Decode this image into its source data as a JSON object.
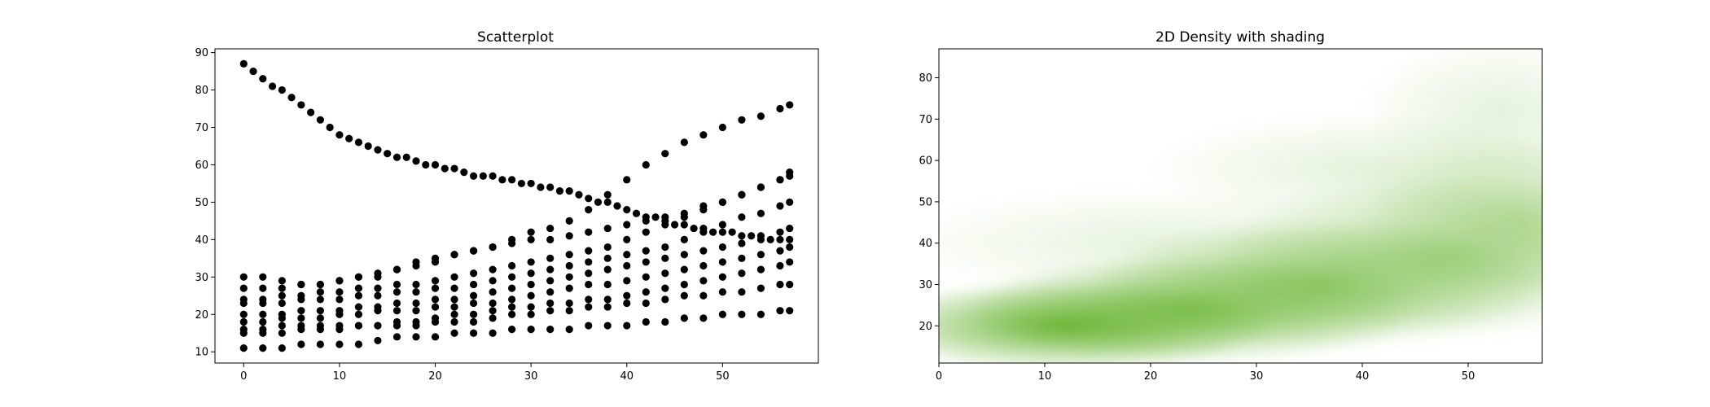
{
  "chart_data": [
    {
      "type": "scatter",
      "title": "Scatterplot",
      "xlim": [
        -3,
        60
      ],
      "ylim": [
        7,
        91
      ],
      "xticks": [
        "0",
        "10",
        "20",
        "30",
        "40",
        "50"
      ],
      "yticks": [
        "10",
        "20",
        "30",
        "40",
        "50",
        "60",
        "70",
        "80",
        "90"
      ],
      "grid": false,
      "marker_color": "#000000",
      "series": [
        {
          "x": [
            0,
            1,
            2,
            3,
            4,
            5,
            6,
            7,
            8,
            9,
            10,
            11,
            12,
            13,
            14,
            15,
            16,
            17,
            18,
            19,
            20,
            21,
            22,
            23,
            24,
            25,
            26,
            27,
            28,
            29,
            30,
            31,
            32,
            33,
            34,
            35,
            36,
            37,
            38,
            39,
            40,
            41,
            42,
            43,
            44,
            45,
            46,
            47,
            48,
            49,
            50,
            51,
            52,
            53,
            54,
            55,
            56,
            57
          ],
          "y": [
            87,
            85,
            83,
            81,
            80,
            78,
            76,
            74,
            72,
            70,
            68,
            67,
            66,
            65,
            64,
            63,
            62,
            62,
            61,
            60,
            60,
            59,
            59,
            58,
            57,
            57,
            57,
            56,
            56,
            55,
            55,
            54,
            54,
            53,
            53,
            52,
            51,
            50,
            50,
            49,
            48,
            47,
            46,
            46,
            45,
            44,
            44,
            43,
            43,
            42,
            42,
            42,
            41,
            41,
            41,
            40,
            40,
            40
          ]
        },
        {
          "x": [
            0,
            2,
            4,
            6,
            8,
            10,
            12,
            14,
            16,
            18,
            20,
            22,
            24,
            26,
            28,
            30,
            32,
            34,
            36,
            38,
            40,
            42,
            44,
            46,
            48,
            50,
            52,
            54,
            56,
            57
          ],
          "y": [
            30,
            30,
            29,
            28,
            28,
            29,
            30,
            30,
            32,
            34,
            35,
            36,
            37,
            38,
            40,
            42,
            43,
            45,
            48,
            52,
            56,
            60,
            63,
            66,
            68,
            70,
            72,
            73,
            75,
            76
          ]
        },
        {
          "x": [
            0,
            2,
            4,
            6,
            8,
            10,
            12,
            14,
            16,
            18,
            20,
            22,
            24,
            26,
            28,
            30,
            32,
            34,
            36,
            38,
            40,
            42,
            44,
            46,
            48,
            50,
            52,
            54,
            56,
            57
          ],
          "y": [
            27,
            27,
            27,
            28,
            28,
            29,
            30,
            31,
            32,
            33,
            34,
            36,
            37,
            38,
            39,
            40,
            40,
            41,
            42,
            43,
            44,
            45,
            46,
            47,
            49,
            50,
            52,
            54,
            56,
            57
          ]
        },
        {
          "x": [
            0,
            2,
            4,
            6,
            8,
            10,
            12,
            14,
            16,
            18,
            20,
            22,
            24,
            26,
            28,
            30,
            32,
            34,
            36,
            38,
            40,
            42,
            44,
            46,
            48,
            50,
            52,
            54,
            56,
            57
          ],
          "y": [
            24,
            24,
            25,
            25,
            26,
            26,
            27,
            27,
            28,
            28,
            29,
            30,
            31,
            32,
            33,
            34,
            35,
            36,
            37,
            38,
            40,
            42,
            44,
            46,
            48,
            50,
            52,
            54,
            56,
            58
          ]
        },
        {
          "x": [
            0,
            2,
            4,
            6,
            8,
            10,
            12,
            14,
            16,
            18,
            20,
            22,
            24,
            26,
            28,
            30,
            32,
            34,
            36,
            38,
            40,
            42,
            44,
            46,
            48,
            50,
            52,
            54,
            56,
            57
          ],
          "y": [
            23,
            23,
            23,
            24,
            24,
            24,
            25,
            25,
            26,
            26,
            27,
            27,
            28,
            29,
            30,
            31,
            32,
            33,
            34,
            35,
            36,
            37,
            38,
            40,
            42,
            44,
            46,
            47,
            49,
            50
          ]
        },
        {
          "x": [
            0,
            2,
            4,
            6,
            8,
            10,
            12,
            14,
            16,
            18,
            20,
            22,
            24,
            26,
            28,
            30,
            32,
            34,
            36,
            38,
            40,
            42,
            44,
            46,
            48,
            50,
            52,
            54,
            56,
            57
          ],
          "y": [
            20,
            20,
            20,
            21,
            21,
            21,
            22,
            22,
            23,
            23,
            24,
            24,
            25,
            26,
            27,
            28,
            29,
            30,
            31,
            32,
            33,
            34,
            35,
            36,
            37,
            38,
            39,
            40,
            42,
            43
          ]
        },
        {
          "x": [
            0,
            2,
            4,
            6,
            8,
            10,
            12,
            14,
            16,
            18,
            20,
            22,
            24,
            26,
            28,
            30,
            32,
            34,
            36,
            38,
            40,
            42,
            44,
            46,
            48,
            50,
            52,
            54,
            56,
            57
          ],
          "y": [
            18,
            18,
            19,
            19,
            19,
            20,
            20,
            21,
            21,
            21,
            22,
            22,
            23,
            23,
            24,
            25,
            26,
            27,
            28,
            28,
            29,
            30,
            31,
            32,
            33,
            34,
            35,
            36,
            37,
            38
          ]
        },
        {
          "x": [
            0,
            2,
            4,
            6,
            8,
            10,
            12,
            14,
            16,
            18,
            20,
            22,
            24,
            26,
            28,
            30,
            32,
            34,
            36,
            38,
            40,
            42,
            44,
            46,
            48,
            50,
            52,
            54,
            56,
            57
          ],
          "y": [
            16,
            16,
            17,
            17,
            17,
            17,
            17,
            17,
            18,
            18,
            19,
            20,
            20,
            21,
            22,
            22,
            23,
            23,
            24,
            24,
            25,
            26,
            27,
            28,
            29,
            30,
            31,
            32,
            33,
            34
          ]
        },
        {
          "x": [
            0,
            2,
            4,
            6,
            8,
            10,
            12,
            14,
            16,
            18,
            20,
            22,
            24,
            26,
            28,
            30,
            32,
            34,
            36,
            38,
            40,
            42,
            44,
            46,
            48,
            50,
            52,
            54,
            56,
            57
          ],
          "y": [
            15,
            15,
            15,
            16,
            16,
            16,
            17,
            17,
            17,
            17,
            18,
            18,
            18,
            19,
            20,
            20,
            21,
            21,
            22,
            22,
            23,
            23,
            24,
            25,
            25,
            26,
            26,
            27,
            28,
            28
          ]
        },
        {
          "x": [
            0,
            2,
            4,
            6,
            8,
            10,
            12,
            14,
            16,
            18,
            20,
            22,
            24,
            26,
            28,
            30,
            32,
            34,
            36,
            38,
            40,
            42,
            44,
            46,
            48,
            50,
            52,
            54,
            56,
            57
          ],
          "y": [
            11,
            11,
            11,
            12,
            12,
            12,
            12,
            13,
            14,
            14,
            14,
            15,
            15,
            15,
            16,
            16,
            16,
            16,
            17,
            17,
            17,
            18,
            18,
            19,
            19,
            20,
            20,
            20,
            21,
            21
          ]
        }
      ]
    },
    {
      "type": "heatmap",
      "title": "2D Density with shading",
      "xlim": [
        0,
        57
      ],
      "ylim": [
        11,
        87
      ],
      "xticks": [
        "0",
        "10",
        "20",
        "30",
        "40",
        "50"
      ],
      "yticks": [
        "20",
        "30",
        "40",
        "50",
        "60",
        "70",
        "80"
      ],
      "colormap": "Greens",
      "peak_color": "#66b32e",
      "density_hotspots": [
        {
          "x": 12,
          "y": 20,
          "weight": 1.0,
          "sx": 9,
          "sy": 5
        },
        {
          "x": 24,
          "y": 24,
          "weight": 0.8,
          "sx": 10,
          "sy": 6
        },
        {
          "x": 36,
          "y": 30,
          "weight": 0.65,
          "sx": 10,
          "sy": 7
        },
        {
          "x": 48,
          "y": 37,
          "weight": 0.5,
          "sx": 10,
          "sy": 9
        },
        {
          "x": 55,
          "y": 46,
          "weight": 0.4,
          "sx": 7,
          "sy": 9
        },
        {
          "x": 22,
          "y": 40,
          "weight": 0.18,
          "sx": 12,
          "sy": 6
        },
        {
          "x": 42,
          "y": 58,
          "weight": 0.2,
          "sx": 10,
          "sy": 6
        },
        {
          "x": 53,
          "y": 72,
          "weight": 0.18,
          "sx": 6,
          "sy": 8
        }
      ]
    }
  ]
}
